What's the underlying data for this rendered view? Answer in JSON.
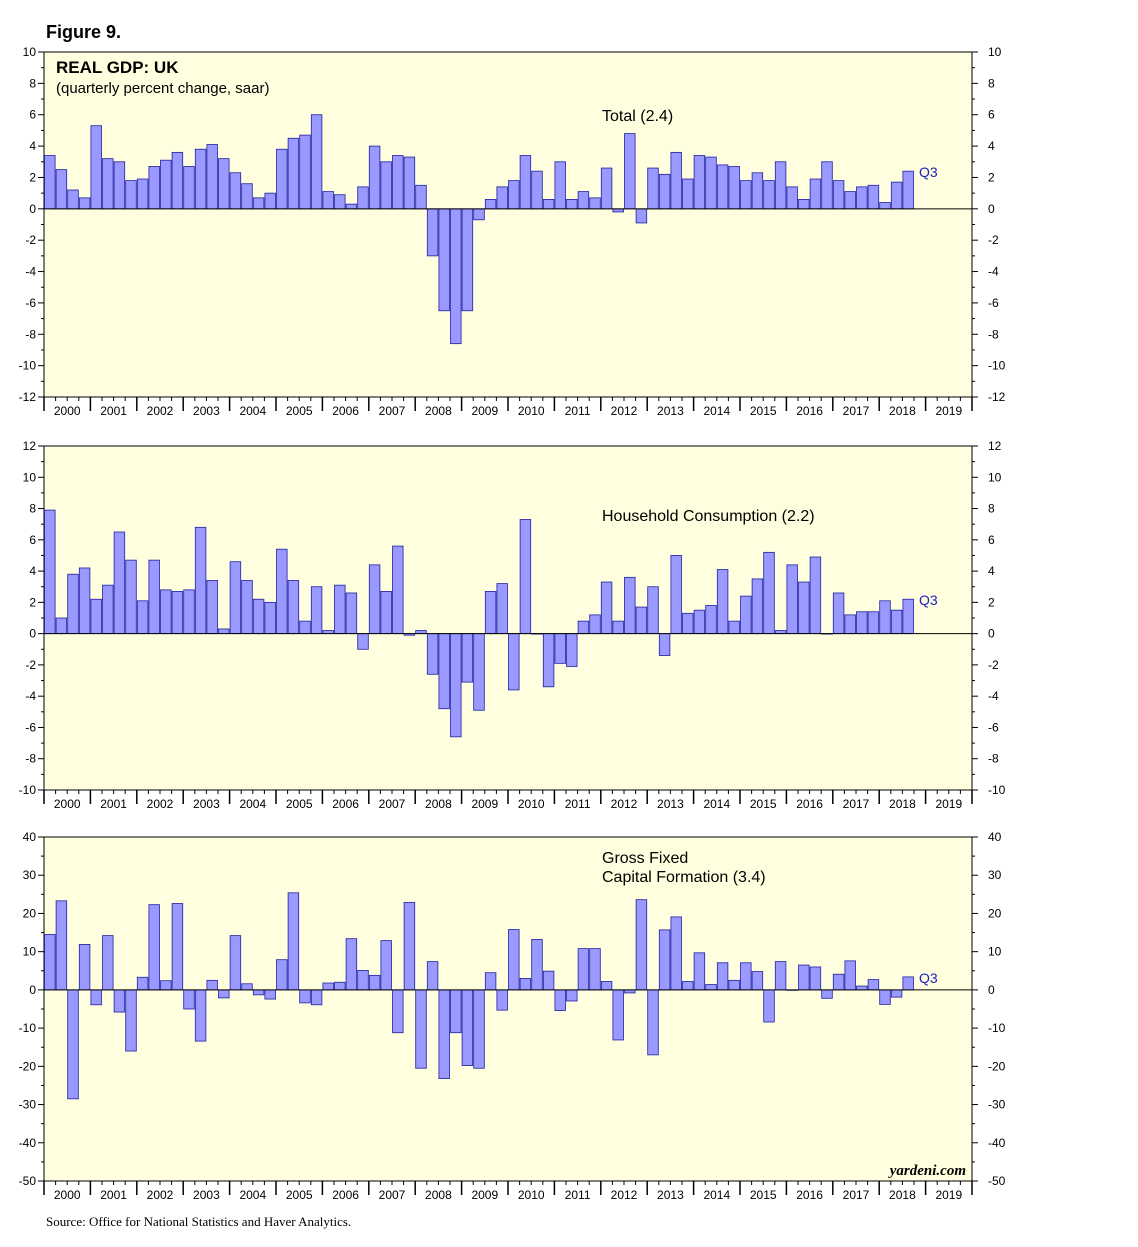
{
  "figure_label": "Figure 9.",
  "source": "Source: Office for National Statistics and Haver Analytics.",
  "brand": "yardeni.com",
  "colors": {
    "panel_bg": "#ffffe0",
    "bar_fill": "#9999ff",
    "bar_stroke": "#2020a0",
    "q_label": "#2020c0"
  },
  "chart_data": [
    {
      "type": "bar",
      "title": "REAL GDP: UK",
      "subtitle": "(quarterly percent change, saar)",
      "series_label": "Total (2.4)",
      "latest_label": "Q3",
      "ylim": [
        -12,
        10
      ],
      "ytick_step": 2,
      "years": [
        "2000",
        "2001",
        "2002",
        "2003",
        "2004",
        "2005",
        "2006",
        "2007",
        "2008",
        "2009",
        "2010",
        "2011",
        "2012",
        "2013",
        "2014",
        "2015",
        "2016",
        "2017",
        "2018",
        "2019"
      ],
      "values": [
        3.4,
        2.5,
        1.2,
        0.7,
        5.3,
        3.2,
        3.0,
        1.8,
        1.9,
        2.7,
        3.1,
        3.6,
        2.7,
        3.8,
        4.1,
        3.2,
        2.3,
        1.6,
        0.7,
        1.0,
        3.8,
        4.5,
        4.7,
        6.0,
        1.1,
        0.9,
        0.3,
        1.4,
        4.0,
        3.0,
        3.4,
        3.3,
        1.5,
        -3.0,
        -6.5,
        -8.6,
        -6.5,
        -0.7,
        0.6,
        1.4,
        1.8,
        3.4,
        2.4,
        0.6,
        3.0,
        0.6,
        1.1,
        0.7,
        2.6,
        -0.2,
        4.8,
        -0.9,
        2.6,
        2.2,
        3.6,
        1.9,
        3.4,
        3.3,
        2.8,
        2.7,
        1.8,
        2.3,
        1.8,
        3.0,
        1.4,
        0.6,
        1.9,
        3.0,
        1.8,
        1.1,
        1.4,
        1.5,
        0.4,
        1.7,
        2.4
      ]
    },
    {
      "type": "bar",
      "title": "",
      "subtitle": "",
      "series_label": "Household Consumption (2.2)",
      "latest_label": "Q3",
      "ylim": [
        -10,
        12
      ],
      "ytick_step": 2,
      "years": [
        "2000",
        "2001",
        "2002",
        "2003",
        "2004",
        "2005",
        "2006",
        "2007",
        "2008",
        "2009",
        "2010",
        "2011",
        "2012",
        "2013",
        "2014",
        "2015",
        "2016",
        "2017",
        "2018",
        "2019"
      ],
      "values": [
        7.9,
        1.0,
        3.8,
        4.2,
        2.2,
        3.1,
        6.5,
        4.7,
        2.1,
        4.7,
        2.8,
        2.7,
        2.8,
        6.8,
        3.4,
        0.3,
        4.6,
        3.4,
        2.2,
        2.0,
        5.4,
        3.4,
        0.8,
        3.0,
        0.2,
        3.1,
        2.6,
        -1.0,
        4.4,
        2.7,
        5.6,
        -0.1,
        0.2,
        -2.6,
        -4.8,
        -6.6,
        -3.1,
        -4.9,
        2.7,
        3.2,
        -3.6,
        7.3,
        0.0,
        -3.4,
        -1.9,
        -2.1,
        0.8,
        1.2,
        3.3,
        0.8,
        3.6,
        1.7,
        3.0,
        -1.4,
        5.0,
        1.3,
        1.5,
        1.8,
        4.1,
        0.8,
        2.4,
        3.5,
        5.2,
        0.2,
        4.4,
        3.3,
        4.9,
        0.0,
        2.6,
        1.2,
        1.4,
        1.4,
        2.1,
        1.5,
        2.2
      ]
    },
    {
      "type": "bar",
      "title": "",
      "subtitle": "",
      "series_label": "Gross Fixed\nCapital Formation (3.4)",
      "series_label_lines": [
        "Gross Fixed",
        "Capital Formation (3.4)"
      ],
      "latest_label": "Q3",
      "ylim": [
        -50,
        40
      ],
      "ytick_step": 10,
      "years": [
        "2000",
        "2001",
        "2002",
        "2003",
        "2004",
        "2005",
        "2006",
        "2007",
        "2008",
        "2009",
        "2010",
        "2011",
        "2012",
        "2013",
        "2014",
        "2015",
        "2016",
        "2017",
        "2018",
        "2019"
      ],
      "values": [
        14.5,
        23.3,
        -28.5,
        11.9,
        -3.9,
        14.2,
        -5.8,
        -16.0,
        3.3,
        22.3,
        2.4,
        22.6,
        -5.0,
        -13.4,
        2.5,
        -2.1,
        14.2,
        1.6,
        -1.3,
        -2.4,
        7.9,
        25.4,
        -3.4,
        -3.9,
        1.8,
        2.0,
        13.4,
        5.1,
        3.8,
        12.9,
        -11.2,
        22.9,
        -20.5,
        7.4,
        -23.2,
        -11.2,
        -19.8,
        -20.5,
        4.5,
        -5.3,
        15.8,
        3.0,
        13.2,
        4.9,
        -5.4,
        -2.9,
        10.8,
        10.8,
        2.2,
        -13.1,
        -0.8,
        23.6,
        -17.0,
        15.7,
        19.1,
        2.2,
        9.7,
        1.4,
        7.1,
        2.5,
        7.1,
        4.8,
        -8.4,
        7.4,
        0.0,
        6.5,
        6.0,
        -2.2,
        4.1,
        7.6,
        1.0,
        2.7,
        -3.8,
        -1.9,
        3.4
      ]
    }
  ]
}
